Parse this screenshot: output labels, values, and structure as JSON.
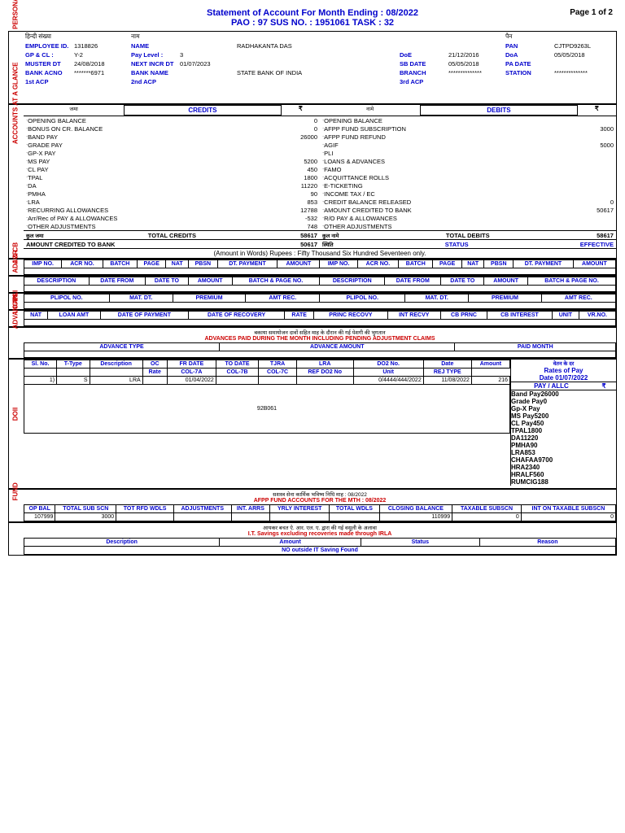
{
  "header": {
    "title": "Statement of Account For Month Ending : 08/2022",
    "subtitle": "PAO : 97   SUS NO. : 1951061  TASK : 32",
    "page": "Page 1 of 2"
  },
  "particulars": {
    "emp_id_lbl": "EMPLOYEE ID.",
    "emp_id": "1318826",
    "name_lbl": "NAME",
    "name": "RADHAKANTA DAS",
    "pan_lbl": "PAN",
    "pan": "CJTPD9263L",
    "gpcl_lbl": "GP & CL :",
    "gpcl": "Y-2",
    "paylevel_lbl": "Pay Level :",
    "paylevel": "3",
    "doe_lbl": "DoE",
    "doe": "21/12/2016",
    "doa_lbl": "DoA",
    "doa": "05/05/2018",
    "muster_lbl": "MUSTER DT",
    "muster": "24/08/2018",
    "nextincr_lbl": "NEXT INCR DT",
    "nextincr": "01/07/2023",
    "sbdate_lbl": "SB DATE",
    "sbdate": "05/05/2018",
    "padate_lbl": "PA DATE",
    "padate": "",
    "bankacno_lbl": "BANK ACNO",
    "bankacno": "*******6971",
    "bankname_lbl": "BANK NAME",
    "bankname": "STATE BANK OF INDIA",
    "branch_lbl": "BRANCH",
    "branch": "**************",
    "station_lbl": "STATION",
    "station": "**************",
    "acp1_lbl": "1st ACP",
    "acp2_lbl": "2nd ACP",
    "acp3_lbl": "3rd ACP"
  },
  "glance": {
    "credits_lbl": "CREDITS",
    "debits_lbl": "DEBITS",
    "rupee": "₹",
    "credits": [
      {
        "lbl": "OPENING BALANCE",
        "amt": "0"
      },
      {
        "lbl": "BONUS ON CR. BALANCE",
        "amt": "0"
      },
      {
        "lbl": "BAND PAY",
        "amt": "26000"
      },
      {
        "lbl": "GRADE PAY",
        "amt": ""
      },
      {
        "lbl": "GP-X PAY",
        "amt": ""
      },
      {
        "lbl": "MS PAY",
        "amt": "5200"
      },
      {
        "lbl": "CL PAY",
        "amt": "450"
      },
      {
        "lbl": "TPAL",
        "amt": "1800"
      },
      {
        "lbl": "DA",
        "amt": "11220"
      },
      {
        "lbl": "PMHA",
        "amt": "90"
      },
      {
        "lbl": "LRA",
        "amt": "853"
      },
      {
        "lbl": "RECURRING ALLOWANCES",
        "amt": "12788"
      },
      {
        "lbl": "Arr/Rec of PAY & ALLOWANCES",
        "amt": "-532"
      },
      {
        "lbl": "OTHER ADJUSTMENTS",
        "amt": "748"
      }
    ],
    "debits": [
      {
        "lbl": "OPENING BALANCE",
        "amt": ""
      },
      {
        "lbl": "AFPP FUND SUBSCRIPTION",
        "amt": "3000"
      },
      {
        "lbl": "AFPP FUND REFUND",
        "amt": ""
      },
      {
        "lbl": "AGIF",
        "amt": "5000"
      },
      {
        "lbl": "PLI",
        "amt": ""
      },
      {
        "lbl": "LOANS & ADVANCES",
        "amt": ""
      },
      {
        "lbl": "FAMO",
        "amt": ""
      },
      {
        "lbl": "ACQUITTANCE ROLLS",
        "amt": ""
      },
      {
        "lbl": "E-TICKETING",
        "amt": ""
      },
      {
        "lbl": "INCOME TAX / EC",
        "amt": ""
      },
      {
        "lbl": "CREDIT BALANCE RELEASED",
        "amt": "0"
      },
      {
        "lbl": "AMOUNT CREDITED TO BANK",
        "amt": "50617"
      },
      {
        "lbl": "R/O PAY & ALLOWANCES",
        "amt": ""
      },
      {
        "lbl": "OTHER ADJUSTMENTS",
        "amt": ""
      }
    ],
    "total_cr_lbl": "TOTAL CREDITS",
    "total_cr": "58617",
    "total_db_lbl": "TOTAL DEBITS",
    "total_db": "58617",
    "amt_bank_lbl": "AMOUNT CREDITED TO BANK",
    "amt_bank": "50617",
    "status_lbl": "STATUS",
    "effective_lbl": "EFFECTIVE",
    "words": "(Amount in Words) Rupees : Fifty Thousand Six Hundred Seventeen  only."
  },
  "acr": {
    "cols": [
      "IMP NO.",
      "ACR NO.",
      "BATCH",
      "PAGE",
      "NAT",
      "PBSN",
      "DT. PAYMENT",
      "AMOUNT",
      "IMP NO.",
      "ACR NO.",
      "BATCH",
      "PAGE",
      "NAT",
      "PBSN",
      "DT. PAYMENT",
      "AMOUNT"
    ]
  },
  "adjcb": {
    "cols": [
      "DESCRIPTION",
      "DATE FROM",
      "DATE TO",
      "AMOUNT",
      "BATCH & PAGE NO.",
      "DESCRIPTION",
      "DATE FROM",
      "DATE TO",
      "AMOUNT",
      "BATCH & PAGE NO."
    ]
  },
  "pli": {
    "cols": [
      "PLIPOL NO.",
      "MAT. DT.",
      "PREMIUM",
      "AMT REC.",
      "PLIPOL NO.",
      "MAT. DT.",
      "PREMIUM",
      "AMT REC."
    ]
  },
  "loan": {
    "cols": [
      "NAT",
      "LOAN AMT",
      "DATE OF PAYMENT",
      "DATE OF RECOVERY",
      "RATE",
      "PRINC RECOVY",
      "INT RECVY",
      "CB PRNC",
      "CB INTEREST",
      "UNIT",
      "VR.NO."
    ]
  },
  "advances": {
    "title": "ADVANCES PAID DURING THE MONTH INCLUDING PENDING ADJUSTMENT CLAIMS",
    "cols": [
      "ADVANCE TYPE",
      "ADVANCE AMOUNT",
      "PAID MONTH"
    ]
  },
  "doii": {
    "cols1": [
      "Sl. No.",
      "T-Type",
      "Description",
      "OC",
      "FR DATE",
      "TO DATE",
      "TJRA",
      "LRA",
      "DO2 No.",
      "Date",
      "Amount"
    ],
    "cols2": [
      "",
      "",
      "",
      "Rate",
      "COL-7A",
      "COL-7B",
      "COL-7C",
      "REF DO2 No",
      "Unit",
      "REJ TYPE"
    ],
    "row": [
      "1)",
      "S",
      "LRA",
      "",
      "01/04/2022",
      "",
      "",
      "",
      "0/4444/444/2022",
      "11/08/2022",
      "216"
    ],
    "ref": "92B061",
    "rates_title": "Rates of Pay",
    "rates_date": "Date 01/07/2022",
    "payallc": "PAY / ALLC",
    "rates": [
      {
        "k": "Band Pay",
        "v": "26000"
      },
      {
        "k": "Grade Pay",
        "v": "0"
      },
      {
        "k": "Gp-X Pay",
        "v": ""
      },
      {
        "k": "MS Pay",
        "v": "5200"
      },
      {
        "k": "CL Pay",
        "v": "450"
      },
      {
        "k": "TPAL",
        "v": "1800"
      },
      {
        "k": "DA",
        "v": "11220"
      },
      {
        "k": "PMHA",
        "v": "90"
      },
      {
        "k": "LRA",
        "v": "853"
      },
      {
        "k": "CHAFAA",
        "v": "9700"
      },
      {
        "k": "HRA",
        "v": "2340"
      },
      {
        "k": "HRALF",
        "v": "560"
      },
      {
        "k": "RUMCIG",
        "v": "188"
      }
    ]
  },
  "fund": {
    "title": "AFPP FUND ACCOUNTS FOR THE MTH : 08/2022",
    "cols": [
      "OP BAL",
      "TOTAL SUB SCN",
      "TOT RFD WDLS",
      "ADJUSTMENTS",
      "INT. ARRS",
      "YRLY INTEREST",
      "TOTAL WDLS",
      "CLOSING BALANCE",
      "TAXABLE SUBSCN",
      "INT ON TAXABLE SUBSCN"
    ],
    "row": [
      "107999",
      "3000",
      "",
      "",
      "",
      "",
      "",
      "110999",
      "0",
      "0"
    ]
  },
  "it": {
    "title": "I.T. Savings excluding recoveries made through IRLA",
    "cols": [
      "Description",
      "Amount",
      "Status",
      "Reason"
    ],
    "none": "NO outside IT Saving Found"
  },
  "labels": {
    "vl_part": "PERSONAL PARTICULARS",
    "vl_glance": "ACCOUNTS AT A GLANCE",
    "vl_acr": "ACR",
    "vl_adj": "ADJ & CB",
    "vl_pli": "PLI",
    "vl_loan": "LOAN",
    "vl_adv": "ADVANCES",
    "vl_doii": "DOII",
    "vl_fund": "FUND"
  }
}
